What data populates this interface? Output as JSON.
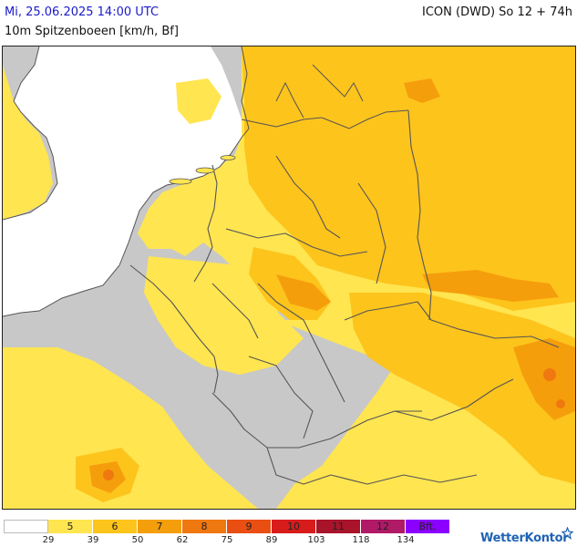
{
  "header": {
    "date": "Mi, 25.06.2025 14:00 UTC",
    "model": "ICON (DWD) So 12 + 74h",
    "parameter": "10m Spitzenboeen [km/h, Bf]"
  },
  "legend": {
    "classes": [
      {
        "label": "",
        "color": "#ffffff"
      },
      {
        "label": "5",
        "color": "#ffe550"
      },
      {
        "label": "6",
        "color": "#fdc41c"
      },
      {
        "label": "7",
        "color": "#f59e0b"
      },
      {
        "label": "8",
        "color": "#f07810"
      },
      {
        "label": "9",
        "color": "#e94f12"
      },
      {
        "label": "10",
        "color": "#d81c1c"
      },
      {
        "label": "11",
        "color": "#a9142b"
      },
      {
        "label": "12",
        "color": "#b01a67"
      },
      {
        "label": "Bft.",
        "color": "#8b00ff"
      }
    ],
    "ticks": [
      "29",
      "39",
      "50",
      "62",
      "75",
      "89",
      "103",
      "118",
      "134"
    ]
  },
  "colors": {
    "sea": "#ffffff",
    "land_calm": "#c8c8c8",
    "bft5": "#ffe550",
    "bft6": "#fdc41c",
    "bft7": "#f59e0b",
    "bft8": "#f07810",
    "border": "#555555"
  },
  "brand": {
    "name": "WetterKontor",
    "icon": "wetterkontor-logo-icon"
  }
}
